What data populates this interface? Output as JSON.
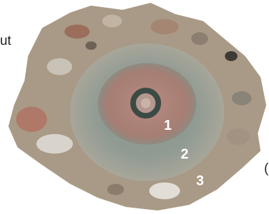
{
  "texts": {
    "left_fragment": "ut",
    "right_fragment": "(",
    "zones": [
      "1",
      "2",
      "3"
    ]
  }
}
